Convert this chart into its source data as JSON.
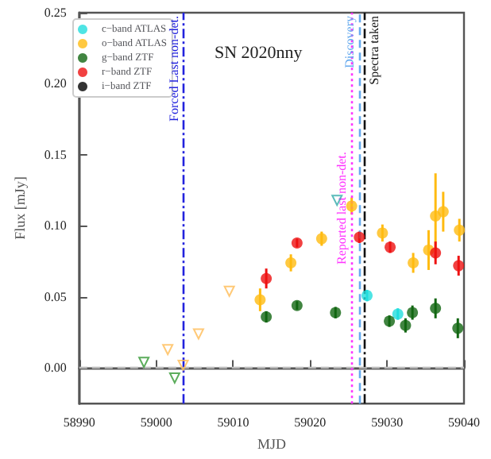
{
  "chart_data": {
    "type": "scatter",
    "xlabel": "MJD",
    "ylabel": "Flux [mJy]",
    "xlim": [
      58990,
      59040
    ],
    "xticks": [
      58990,
      59000,
      59010,
      59020,
      59030,
      59040
    ],
    "ylim": [
      -0.025,
      0.25
    ],
    "yticks": [
      {
        "value": 0,
        "label": "0.00"
      },
      {
        "value": 0.05,
        "label": "0.05"
      },
      {
        "value": 0.1,
        "label": "0.10"
      },
      {
        "value": 0.15,
        "label": "0.15"
      },
      {
        "value": 0.2,
        "label": "0.20"
      },
      {
        "value": 0.25,
        "label": "0.25"
      }
    ],
    "legend": "top left",
    "grid": false,
    "marker": "circle",
    "annotations": [
      "SN 2020nny"
    ],
    "ref_lines": [
      {
        "axis": "y",
        "value": 0,
        "label": null,
        "color": "#bbbbbb",
        "line_style": "dashed"
      },
      {
        "axis": "x",
        "value": 59003.5,
        "label": "Forced Last non-det.",
        "color": "#2222dd",
        "line_style": "dashdot"
      },
      {
        "axis": "x",
        "value": 59025.3,
        "label": "Reported last non-det.",
        "color": "#ff33ff",
        "line_style": "dotted"
      },
      {
        "axis": "x",
        "value": 59026.4,
        "label": "Discovery",
        "color": "#66aaee",
        "line_style": "dashed"
      },
      {
        "axis": "x",
        "value": 59027.1,
        "label": "Spectra taken",
        "color": "#111111",
        "line_style": "dashdot"
      }
    ],
    "series": [
      {
        "name": "c−band ATLAS",
        "color": "#22dddd",
        "x": [
          59027.4,
          59031.4
        ],
        "values": [
          0.051,
          0.038
        ],
        "errors": [
          0.004,
          0.004
        ]
      },
      {
        "name": "o−band ATLAS",
        "color": "#ffbb11",
        "x": [
          59013.5,
          59017.5,
          59021.5,
          59025.4,
          59029.4,
          59033.4,
          59035.4,
          59036.3,
          59037.3,
          59039.4
        ],
        "values": [
          0.048,
          0.074,
          0.091,
          0.114,
          0.095,
          0.074,
          0.083,
          0.107,
          0.11,
          0.097
        ],
        "errors": [
          0.008,
          0.006,
          0.005,
          0.006,
          0.006,
          0.007,
          0.014,
          0.03,
          0.014,
          0.008
        ]
      },
      {
        "name": "g−band ZTF",
        "color": "#116611",
        "x": [
          59014.3,
          59018.3,
          59023.3,
          59030.3,
          59032.4,
          59033.3,
          59036.3,
          59039.2
        ],
        "values": [
          0.036,
          0.044,
          0.039,
          0.033,
          0.03,
          0.039,
          0.042,
          0.028
        ],
        "errors": [
          0.004,
          0.003,
          0.004,
          0.004,
          0.005,
          0.005,
          0.007,
          0.007
        ]
      },
      {
        "name": "r−band ZTF",
        "color": "#ee1111",
        "x": [
          59014.3,
          59018.3,
          59026.4,
          59030.4,
          59036.3,
          59039.3
        ],
        "values": [
          0.063,
          0.088,
          0.092,
          0.085,
          0.081,
          0.072
        ],
        "errors": [
          0.007,
          0.003,
          0.004,
          0.004,
          0.008,
          0.007
        ]
      },
      {
        "name": "i−band ZTF",
        "color": "#000000"
      },
      {
        "type": "scatter",
        "marker": "triangle",
        "color": "#339933",
        "x": [
          58998.4,
          59002.4
        ],
        "values": [
          0.004,
          -0.007
        ]
      },
      {
        "type": "scatter",
        "marker": "triangle",
        "color": "#ffbb55",
        "x": [
          59001.5,
          59003.5,
          59005.5,
          59009.5
        ],
        "values": [
          0.013,
          0.002,
          0.024,
          0.054
        ]
      },
      {
        "type": "scatter",
        "marker": "triangle",
        "color": "#33aaaa",
        "x": [
          59023.5
        ],
        "values": [
          0.118
        ]
      }
    ]
  }
}
